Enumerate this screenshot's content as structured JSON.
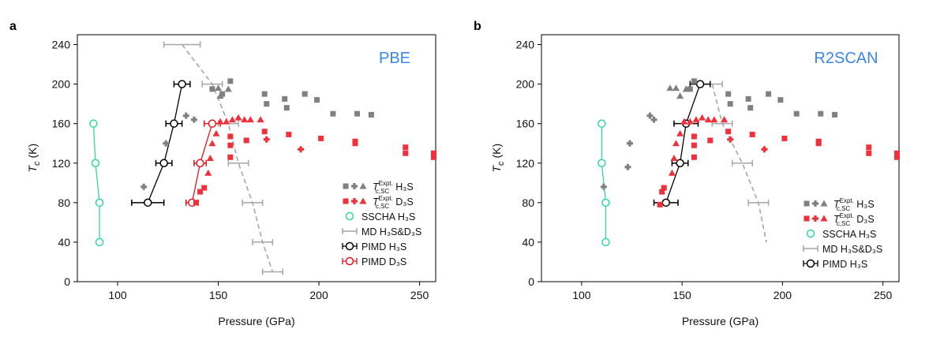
{
  "colors": {
    "expt_h3s": "#808080",
    "expt_d3s": "#f0303a",
    "sscha": "#33d6a0",
    "md": "#a6a6a6",
    "pimd_h3s": "#000000",
    "pimd_d3s": "#e8141e",
    "method_label": "#3a86e8"
  },
  "chart_data": [
    {
      "panel": "a",
      "method": "PBE",
      "type": "scatter",
      "xlabel": "Pressure (GPa)",
      "ylabel": "T_c (K)",
      "ylabel_main": "T",
      "ylabel_sub": "c",
      "ylabel_unit": " (K)",
      "xlim": [
        80,
        258
      ],
      "ylim": [
        0,
        250
      ],
      "xticks": [
        100,
        150,
        200,
        250
      ],
      "yticks": [
        0,
        40,
        80,
        120,
        160,
        200,
        240
      ],
      "legend": {
        "position": "bottom-right",
        "entries": [
          {
            "key": "expt_h3s",
            "label": "H₃S",
            "tc_main": "T",
            "tc_sub": "c,SC",
            "tc_sup": "Expt."
          },
          {
            "key": "expt_d3s",
            "label": "D₃S",
            "tc_main": "T",
            "tc_sub": "c,SC",
            "tc_sup": "Expt."
          },
          {
            "key": "sscha",
            "label": "SSCHA H₃S"
          },
          {
            "key": "md",
            "label": "MD H₃S&D₃S"
          },
          {
            "key": "pimd_h3s",
            "label": "PIMD H₃S"
          },
          {
            "key": "pimd_d3s",
            "label": "PIMD D₃S"
          }
        ]
      },
      "series": [
        {
          "name": "SSCHA H3S",
          "key": "sscha",
          "kind": "line-open",
          "points": [
            [
              91,
              40
            ],
            [
              91,
              80
            ],
            [
              89,
              120
            ],
            [
              88,
              160
            ]
          ]
        },
        {
          "name": "MD H3S&D3S",
          "key": "md",
          "kind": "dashed-errx",
          "points": [
            [
              132,
              240
            ],
            [
              147,
              200
            ],
            [
              155,
              160
            ],
            [
              160,
              120
            ],
            [
              167,
              80
            ],
            [
              172,
              40
            ],
            [
              177,
              10
            ]
          ],
          "xerr": [
            9,
            5,
            5,
            5,
            5,
            5,
            5
          ]
        },
        {
          "name": "PIMD H3S",
          "key": "pimd_h3s",
          "kind": "line-open-errx",
          "points": [
            [
              115,
              80
            ],
            [
              123,
              120
            ],
            [
              128,
              160
            ],
            [
              132,
              200
            ]
          ],
          "xerr": [
            8,
            4,
            4,
            4
          ]
        },
        {
          "name": "PIMD D3S",
          "key": "pimd_d3s",
          "kind": "line-open-errx",
          "points": [
            [
              137,
              80
            ],
            [
              141,
              120
            ],
            [
              147,
              160
            ]
          ],
          "xerr": [
            3,
            3,
            4
          ]
        },
        {
          "name": "Expt. H3S squares",
          "key": "expt_h3s",
          "marker": "square",
          "points": [
            [
              147,
              195
            ],
            [
              152,
              190
            ],
            [
              156,
              203
            ],
            [
              173,
              190
            ],
            [
              174,
              180
            ],
            [
              183,
              185
            ],
            [
              184,
              176
            ],
            [
              193,
              190
            ],
            [
              199,
              184
            ],
            [
              207,
              170
            ],
            [
              219,
              170
            ],
            [
              226,
              169
            ]
          ]
        },
        {
          "name": "Expt. H3S plus",
          "key": "expt_h3s",
          "marker": "plus",
          "points": [
            [
              113,
              96
            ],
            [
              124,
              140
            ],
            [
              134,
              168
            ],
            [
              138,
              164
            ]
          ]
        },
        {
          "name": "Expt. H3S triangles",
          "key": "expt_h3s",
          "marker": "triangle",
          "points": [
            [
              150,
              196
            ],
            [
              151,
              188
            ],
            [
              155,
              195
            ]
          ]
        },
        {
          "name": "Expt. D3S squares",
          "key": "expt_d3s",
          "marker": "square",
          "points": [
            [
              139,
              80
            ],
            [
              141,
              91
            ],
            [
              143,
              95
            ],
            [
              156,
              147
            ],
            [
              156,
              138
            ],
            [
              156,
              126
            ],
            [
              164,
              143
            ],
            [
              173,
              152
            ],
            [
              185,
              149
            ],
            [
              201,
              145
            ],
            [
              218,
              142
            ],
            [
              218,
              140
            ],
            [
              243,
              136
            ],
            [
              243,
              130
            ],
            [
              257,
              130
            ],
            [
              257,
              126
            ]
          ]
        },
        {
          "name": "Expt. D3S plus",
          "key": "expt_d3s",
          "marker": "plus",
          "points": [
            [
              174,
              144
            ],
            [
              191,
              134
            ]
          ]
        },
        {
          "name": "Expt. D3S triangles",
          "key": "expt_d3s",
          "marker": "triangle",
          "points": [
            [
              145,
              110
            ],
            [
              146,
              125
            ],
            [
              147,
              140
            ],
            [
              149,
              150
            ],
            [
              151,
              162
            ],
            [
              154,
              162
            ],
            [
              157,
              164
            ],
            [
              160,
              166
            ],
            [
              163,
              164
            ],
            [
              166,
              164
            ],
            [
              171,
              164
            ]
          ]
        }
      ]
    },
    {
      "panel": "b",
      "method": "R2SCAN",
      "type": "scatter",
      "xlabel": "Pressure (GPa)",
      "ylabel": "T_c (K)",
      "ylabel_main": "T",
      "ylabel_sub": "c",
      "ylabel_unit": " (K)",
      "xlim": [
        80,
        258
      ],
      "ylim": [
        0,
        250
      ],
      "xticks": [
        100,
        150,
        200,
        250
      ],
      "yticks": [
        0,
        40,
        80,
        120,
        160,
        200,
        240
      ],
      "legend": {
        "position": "bottom-right",
        "entries": [
          {
            "key": "expt_h3s",
            "label": "H₃S",
            "tc_main": "T",
            "tc_sub": "c,SC",
            "tc_sup": "Expt."
          },
          {
            "key": "expt_d3s",
            "label": "D₃S",
            "tc_main": "T",
            "tc_sub": "c,SC",
            "tc_sup": "Expt."
          },
          {
            "key": "sscha",
            "label": "SSCHA H₃S"
          },
          {
            "key": "md",
            "label": "MD H₃S&D₃S"
          },
          {
            "key": "pimd_h3s",
            "label": "PIMD H₃S"
          }
        ]
      },
      "series": [
        {
          "name": "SSCHA H3S",
          "key": "sscha",
          "kind": "line-open",
          "points": [
            [
              112,
              40
            ],
            [
              112,
              80
            ],
            [
              110,
              120
            ],
            [
              110,
              160
            ]
          ]
        },
        {
          "name": "MD H3S&D3S",
          "key": "md",
          "kind": "dashed-errx",
          "points": [
            [
              165,
              200
            ],
            [
              170,
              160
            ],
            [
              180,
              120
            ],
            [
              188,
              80
            ],
            [
              192,
              40
            ]
          ],
          "xerr": [
            5,
            5,
            5,
            5,
            0
          ]
        },
        {
          "name": "PIMD H3S",
          "key": "pimd_h3s",
          "kind": "line-open-errx",
          "points": [
            [
              142,
              80
            ],
            [
              149,
              120
            ],
            [
              152,
              160
            ],
            [
              159,
              200
            ]
          ],
          "xerr": [
            6,
            4,
            6,
            5
          ]
        },
        {
          "name": "Expt. H3S squares",
          "key": "expt_h3s",
          "marker": "square",
          "points": [
            [
              154,
              195
            ],
            [
              156,
              203
            ],
            [
              173,
              190
            ],
            [
              174,
              180
            ],
            [
              183,
              185
            ],
            [
              184,
              176
            ],
            [
              193,
              190
            ],
            [
              199,
              184
            ],
            [
              207,
              170
            ],
            [
              219,
              170
            ],
            [
              226,
              169
            ]
          ]
        },
        {
          "name": "Expt. H3S plus",
          "key": "expt_h3s",
          "marker": "plus",
          "points": [
            [
              111,
              96
            ],
            [
              123,
              116
            ],
            [
              124,
              140
            ],
            [
              134,
              168
            ],
            [
              136,
              164
            ]
          ]
        },
        {
          "name": "Expt. H3S triangles",
          "key": "expt_h3s",
          "marker": "triangle",
          "points": [
            [
              144,
              196
            ],
            [
              147,
              196
            ],
            [
              149,
              188
            ],
            [
              152,
              195
            ]
          ]
        },
        {
          "name": "Expt. D3S squares",
          "key": "expt_d3s",
          "marker": "square",
          "points": [
            [
              139,
              78
            ],
            [
              140,
              91
            ],
            [
              141,
              95
            ],
            [
              156,
              147
            ],
            [
              156,
              138
            ],
            [
              156,
              126
            ],
            [
              164,
              143
            ],
            [
              173,
              152
            ],
            [
              185,
              149
            ],
            [
              201,
              145
            ],
            [
              218,
              142
            ],
            [
              218,
              140
            ],
            [
              243,
              136
            ],
            [
              243,
              130
            ],
            [
              257,
              130
            ],
            [
              257,
              126
            ]
          ]
        },
        {
          "name": "Expt. D3S plus",
          "key": "expt_d3s",
          "marker": "plus",
          "points": [
            [
              174,
              144
            ],
            [
              191,
              134
            ]
          ]
        },
        {
          "name": "Expt. D3S triangles",
          "key": "expt_d3s",
          "marker": "triangle",
          "points": [
            [
              145,
              110
            ],
            [
              146,
              125
            ],
            [
              147,
              140
            ],
            [
              149,
              150
            ],
            [
              151,
              162
            ],
            [
              154,
              162
            ],
            [
              157,
              164
            ],
            [
              160,
              166
            ],
            [
              163,
              164
            ],
            [
              166,
              164
            ],
            [
              171,
              164
            ]
          ]
        }
      ]
    }
  ]
}
